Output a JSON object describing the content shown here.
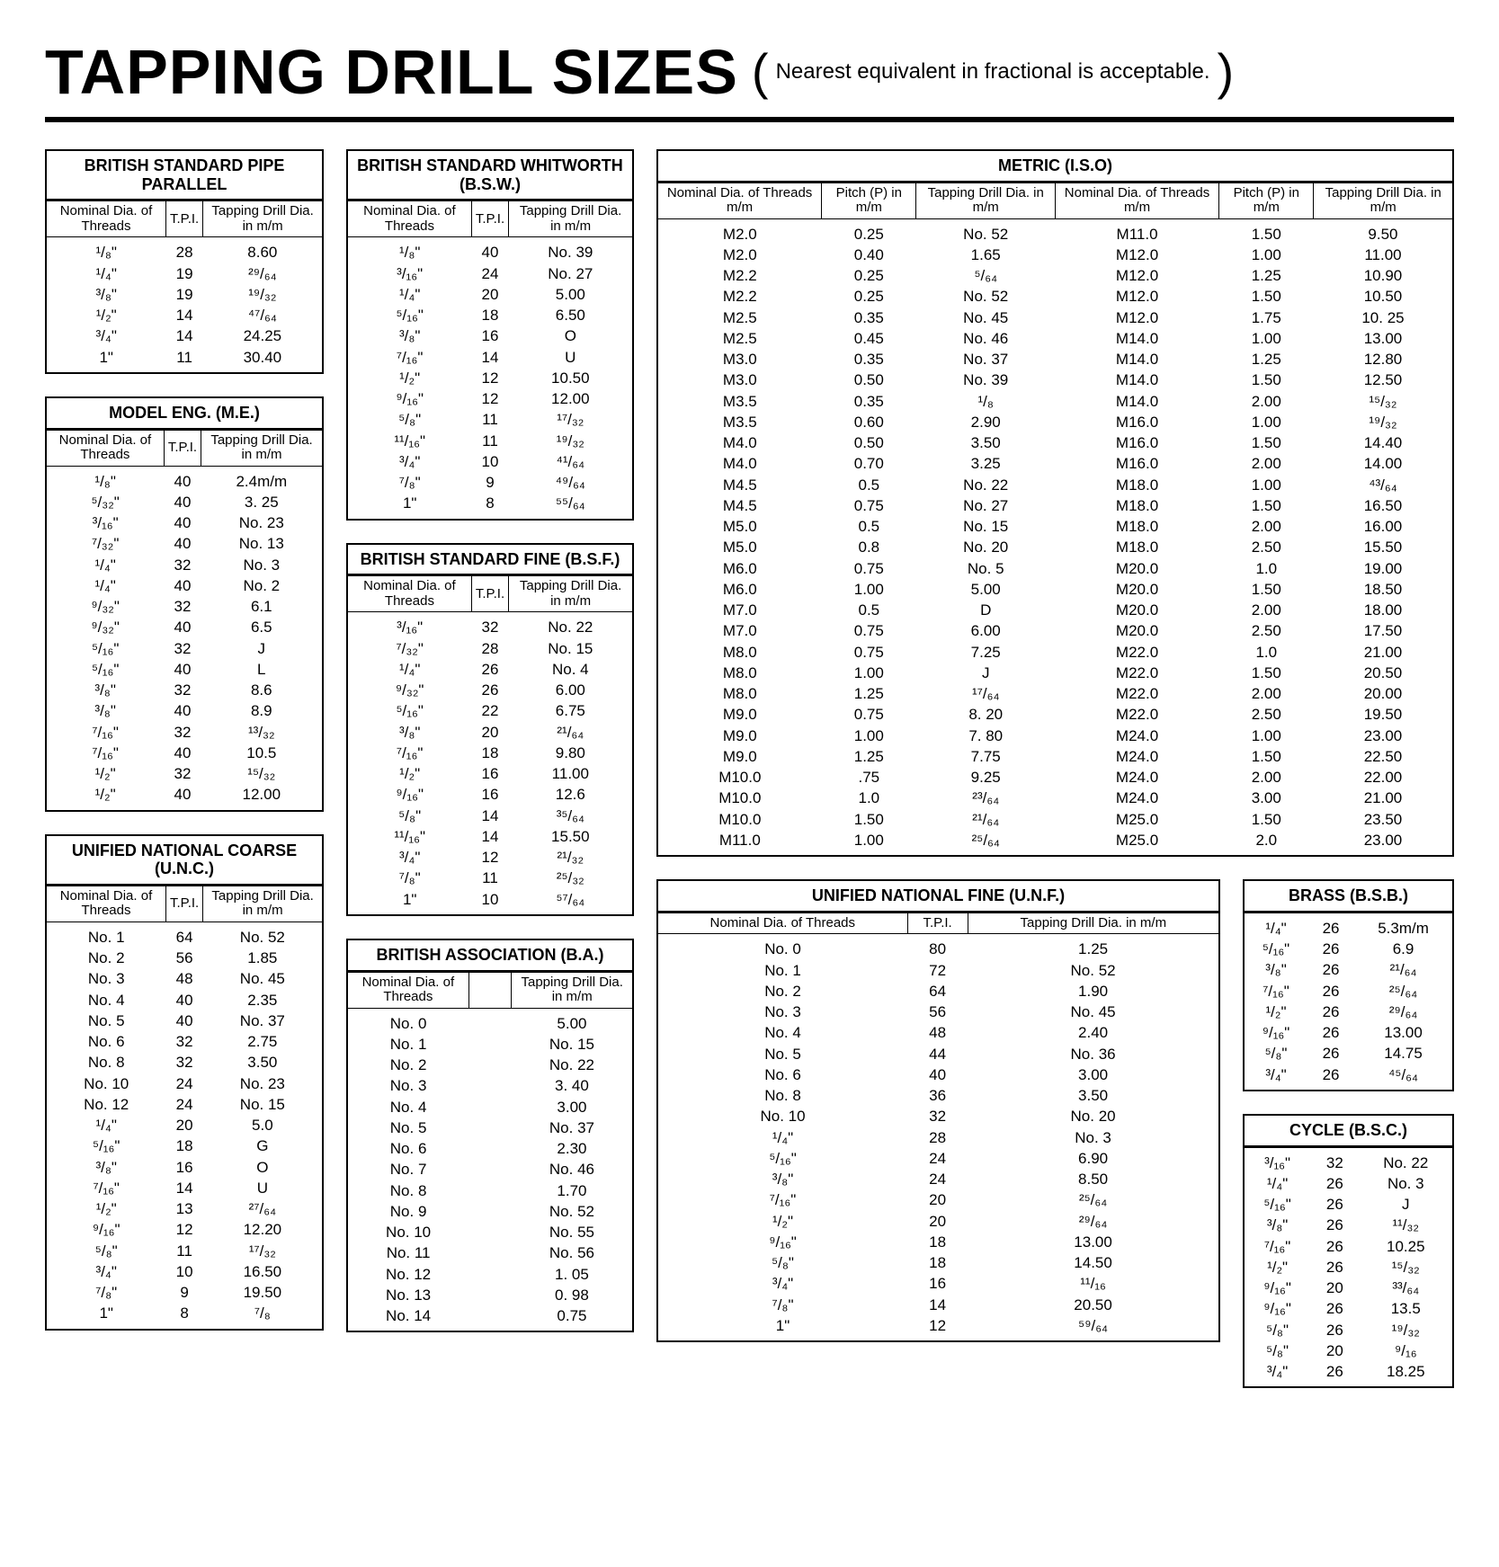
{
  "title": "TAPPING DRILL SIZES",
  "subtitle": "Nearest equivalent in fractional is acceptable.",
  "col_headers_std": [
    "Nominal Dia. of Threads",
    "T.P.I.",
    "Tapping Drill Dia. in m/m"
  ],
  "col_headers_ba": [
    "Nominal Dia. of Threads",
    "",
    "Tapping Drill Dia. in m/m"
  ],
  "col_headers_metric": [
    "Nominal Dia. of Threads m/m",
    "Pitch (P) in m/m",
    "Tapping Drill Dia. in m/m",
    "Nominal Dia. of Threads m/m",
    "Pitch (P) in m/m",
    "Tapping Drill Dia. in m/m"
  ],
  "tables": {
    "pipe": {
      "title": "BRITISH STANDARD PIPE PARALLEL",
      "rows": [
        [
          "¹/₈\"",
          "28",
          "8.60"
        ],
        [
          "¹/₄\"",
          "19",
          "²⁹/₆₄"
        ],
        [
          "³/₈\"",
          "19",
          "¹⁹/₃₂"
        ],
        [
          "¹/₂\"",
          "14",
          "⁴⁷/₆₄"
        ],
        [
          "³/₄\"",
          "14",
          "24.25"
        ],
        [
          "1\"",
          "11",
          "30.40"
        ]
      ]
    },
    "me": {
      "title": "MODEL ENG. (M.E.)",
      "rows": [
        [
          "¹/₈\"",
          "40",
          "2.4m/m"
        ],
        [
          "⁵/₃₂\"",
          "40",
          "3. 25"
        ],
        [
          "³/₁₆\"",
          "40",
          "No. 23"
        ],
        [
          "⁷/₃₂\"",
          "40",
          "No. 13"
        ],
        [
          "¹/₄\"",
          "32",
          "No. 3"
        ],
        [
          "¹/₄\"",
          "40",
          "No. 2"
        ],
        [
          "⁹/₃₂\"",
          "32",
          "6.1"
        ],
        [
          "⁹/₃₂\"",
          "40",
          "6.5"
        ],
        [
          "⁵/₁₆\"",
          "32",
          "J"
        ],
        [
          "⁵/₁₆\"",
          "40",
          "L"
        ],
        [
          "³/₈\"",
          "32",
          "8.6"
        ],
        [
          "³/₈\"",
          "40",
          "8.9"
        ],
        [
          "⁷/₁₆\"",
          "32",
          "¹³/₃₂"
        ],
        [
          "⁷/₁₆\"",
          "40",
          "10.5"
        ],
        [
          "¹/₂\"",
          "32",
          "¹⁵/₃₂"
        ],
        [
          "¹/₂\"",
          "40",
          "12.00"
        ]
      ]
    },
    "unc": {
      "title": "UNIFIED NATIONAL COARSE (U.N.C.)",
      "rows": [
        [
          "No. 1",
          "64",
          "No. 52"
        ],
        [
          "No. 2",
          "56",
          "1.85"
        ],
        [
          "No. 3",
          "48",
          "No. 45"
        ],
        [
          "No. 4",
          "40",
          "2.35"
        ],
        [
          "No. 5",
          "40",
          "No. 37"
        ],
        [
          "No. 6",
          "32",
          "2.75"
        ],
        [
          "No. 8",
          "32",
          "3.50"
        ],
        [
          "No. 10",
          "24",
          "No. 23"
        ],
        [
          "No. 12",
          "24",
          "No. 15"
        ],
        [
          "¹/₄\"",
          "20",
          "5.0"
        ],
        [
          "⁵/₁₆\"",
          "18",
          "G"
        ],
        [
          "³/₈\"",
          "16",
          "O"
        ],
        [
          "⁷/₁₆\"",
          "14",
          "U"
        ],
        [
          "¹/₂\"",
          "13",
          "²⁷/₆₄"
        ],
        [
          "⁹/₁₆\"",
          "12",
          "12.20"
        ],
        [
          "⁵/₈\"",
          "11",
          "¹⁷/₃₂"
        ],
        [
          "³/₄\"",
          "10",
          "16.50"
        ],
        [
          "⁷/₈\"",
          "9",
          "19.50"
        ],
        [
          "1\"",
          "8",
          "⁷/₈"
        ]
      ]
    },
    "bsw": {
      "title": "BRITISH STANDARD WHITWORTH (B.S.W.)",
      "rows": [
        [
          "¹/₈\"",
          "40",
          "No. 39"
        ],
        [
          "³/₁₆\"",
          "24",
          "No. 27"
        ],
        [
          "¹/₄\"",
          "20",
          "5.00"
        ],
        [
          "⁵/₁₆\"",
          "18",
          "6.50"
        ],
        [
          "³/₈\"",
          "16",
          "O"
        ],
        [
          "⁷/₁₆\"",
          "14",
          "U"
        ],
        [
          "¹/₂\"",
          "12",
          "10.50"
        ],
        [
          "⁹/₁₆\"",
          "12",
          "12.00"
        ],
        [
          "⁵/₈\"",
          "11",
          "¹⁷/₃₂"
        ],
        [
          "¹¹/₁₆\"",
          "11",
          "¹⁹/₃₂"
        ],
        [
          "³/₄\"",
          "10",
          "⁴¹/₆₄"
        ],
        [
          "⁷/₈\"",
          "9",
          "⁴⁹/₆₄"
        ],
        [
          "1\"",
          "8",
          "⁵⁵/₆₄"
        ]
      ]
    },
    "bsf": {
      "title": "BRITISH STANDARD FINE (B.S.F.)",
      "rows": [
        [
          "³/₁₆\"",
          "32",
          "No. 22"
        ],
        [
          "⁷/₃₂\"",
          "28",
          "No. 15"
        ],
        [
          "¹/₄\"",
          "26",
          "No. 4"
        ],
        [
          "⁹/₃₂\"",
          "26",
          "6.00"
        ],
        [
          "⁵/₁₆\"",
          "22",
          "6.75"
        ],
        [
          "³/₈\"",
          "20",
          "²¹/₆₄"
        ],
        [
          "⁷/₁₆\"",
          "18",
          "9.80"
        ],
        [
          "¹/₂\"",
          "16",
          "11.00"
        ],
        [
          "⁹/₁₆\"",
          "16",
          "12.6"
        ],
        [
          "⁵/₈\"",
          "14",
          "³⁵/₆₄"
        ],
        [
          "¹¹/₁₆\"",
          "14",
          "15.50"
        ],
        [
          "³/₄\"",
          "12",
          "²¹/₃₂"
        ],
        [
          "⁷/₈\"",
          "11",
          "²⁵/₃₂"
        ],
        [
          "1\"",
          "10",
          "⁵⁷/₆₄"
        ]
      ]
    },
    "ba": {
      "title": "BRITISH ASSOCIATION (B.A.)",
      "rows": [
        [
          "No. 0",
          "",
          "5.00"
        ],
        [
          "No. 1",
          "",
          "No. 15"
        ],
        [
          "No. 2",
          "",
          "No. 22"
        ],
        [
          "No. 3",
          "",
          "3. 40"
        ],
        [
          "No. 4",
          "",
          "3.00"
        ],
        [
          "No. 5",
          "",
          "No. 37"
        ],
        [
          "No. 6",
          "",
          "2.30"
        ],
        [
          "No. 7",
          "",
          "No. 46"
        ],
        [
          "No. 8",
          "",
          "1.70"
        ],
        [
          "No. 9",
          "",
          "No. 52"
        ],
        [
          "No. 10",
          "",
          "No. 55"
        ],
        [
          "No. 11",
          "",
          "No. 56"
        ],
        [
          "No. 12",
          "",
          "1. 05"
        ],
        [
          "No. 13",
          "",
          "0. 98"
        ],
        [
          "No. 14",
          "",
          "0.75"
        ]
      ]
    },
    "metric": {
      "title": "METRIC (I.S.O)",
      "rows": [
        [
          "M2.0",
          "0.25",
          "No. 52",
          "M11.0",
          "1.50",
          "9.50"
        ],
        [
          "M2.0",
          "0.40",
          "1.65",
          "M12.0",
          "1.00",
          "11.00"
        ],
        [
          "M2.2",
          "0.25",
          "⁵/₆₄",
          "M12.0",
          "1.25",
          "10.90"
        ],
        [
          "M2.2",
          "0.25",
          "No. 52",
          "M12.0",
          "1.50",
          "10.50"
        ],
        [
          "M2.5",
          "0.35",
          "No. 45",
          "M12.0",
          "1.75",
          "10. 25"
        ],
        [
          "M2.5",
          "0.45",
          "No. 46",
          "M14.0",
          "1.00",
          "13.00"
        ],
        [
          "M3.0",
          "0.35",
          "No. 37",
          "M14.0",
          "1.25",
          "12.80"
        ],
        [
          "M3.0",
          "0.50",
          "No. 39",
          "M14.0",
          "1.50",
          "12.50"
        ],
        [
          "M3.5",
          "0.35",
          "¹/₈",
          "M14.0",
          "2.00",
          "¹⁵/₃₂"
        ],
        [
          "M3.5",
          "0.60",
          "2.90",
          "M16.0",
          "1.00",
          "¹⁹/₃₂"
        ],
        [
          "M4.0",
          "0.50",
          "3.50",
          "M16.0",
          "1.50",
          "14.40"
        ],
        [
          "M4.0",
          "0.70",
          "3.25",
          "M16.0",
          "2.00",
          "14.00"
        ],
        [
          "M4.5",
          "0.5",
          "No. 22",
          "M18.0",
          "1.00",
          "⁴³/₆₄"
        ],
        [
          "M4.5",
          "0.75",
          "No. 27",
          "M18.0",
          "1.50",
          "16.50"
        ],
        [
          "M5.0",
          "0.5",
          "No. 15",
          "M18.0",
          "2.00",
          "16.00"
        ],
        [
          "M5.0",
          "0.8",
          "No. 20",
          "M18.0",
          "2.50",
          "15.50"
        ],
        [
          "M6.0",
          "0.75",
          "No. 5",
          "M20.0",
          "1.0",
          "19.00"
        ],
        [
          "M6.0",
          "1.00",
          "5.00",
          "M20.0",
          "1.50",
          "18.50"
        ],
        [
          "M7.0",
          "0.5",
          "D",
          "M20.0",
          "2.00",
          "18.00"
        ],
        [
          "M7.0",
          "0.75",
          "6.00",
          "M20.0",
          "2.50",
          "17.50"
        ],
        [
          "M8.0",
          "0.75",
          "7.25",
          "M22.0",
          "1.0",
          "21.00"
        ],
        [
          "M8.0",
          "1.00",
          "J",
          "M22.0",
          "1.50",
          "20.50"
        ],
        [
          "M8.0",
          "1.25",
          "¹⁷/₆₄",
          "M22.0",
          "2.00",
          "20.00"
        ],
        [
          "M9.0",
          "0.75",
          "8. 20",
          "M22.0",
          "2.50",
          "19.50"
        ],
        [
          "M9.0",
          "1.00",
          "7. 80",
          "M24.0",
          "1.00",
          "23.00"
        ],
        [
          "M9.0",
          "1.25",
          "7.75",
          "M24.0",
          "1.50",
          "22.50"
        ],
        [
          "M10.0",
          ".75",
          "9.25",
          "M24.0",
          "2.00",
          "22.00"
        ],
        [
          "M10.0",
          "1.0",
          "²³/₆₄",
          "M24.0",
          "3.00",
          "21.00"
        ],
        [
          "M10.0",
          "1.50",
          "²¹/₆₄",
          "M25.0",
          "1.50",
          "23.50"
        ],
        [
          "M11.0",
          "1.00",
          "²⁵/₆₄",
          "M25.0",
          "2.0",
          "23.00"
        ]
      ]
    },
    "unf": {
      "title": "UNIFIED NATIONAL FINE (U.N.F.)",
      "rows": [
        [
          "No. 0",
          "80",
          "1.25"
        ],
        [
          "No. 1",
          "72",
          "No. 52"
        ],
        [
          "No. 2",
          "64",
          "1.90"
        ],
        [
          "No. 3",
          "56",
          "No. 45"
        ],
        [
          "No. 4",
          "48",
          "2.40"
        ],
        [
          "No. 5",
          "44",
          "No. 36"
        ],
        [
          "No. 6",
          "40",
          "3.00"
        ],
        [
          "No. 8",
          "36",
          "3.50"
        ],
        [
          "No. 10",
          "32",
          "No. 20"
        ],
        [
          "¹/₄\"",
          "28",
          "No. 3"
        ],
        [
          "⁵/₁₆\"",
          "24",
          "6.90"
        ],
        [
          "³/₈\"",
          "24",
          "8.50"
        ],
        [
          "⁷/₁₆\"",
          "20",
          "²⁵/₆₄"
        ],
        [
          "¹/₂\"",
          "20",
          "²⁹/₆₄"
        ],
        [
          "⁹/₁₆\"",
          "18",
          "13.00"
        ],
        [
          "⁵/₈\"",
          "18",
          "14.50"
        ],
        [
          "³/₄\"",
          "16",
          "¹¹/₁₆"
        ],
        [
          "⁷/₈\"",
          "14",
          "20.50"
        ],
        [
          "1\"",
          "12",
          "⁵⁹/₆₄"
        ]
      ]
    },
    "brass": {
      "title": "BRASS (B.S.B.)",
      "rows": [
        [
          "¹/₄\"",
          "26",
          "5.3m/m"
        ],
        [
          "⁵/₁₆\"",
          "26",
          "6.9"
        ],
        [
          "³/₈\"",
          "26",
          "²¹/₆₄"
        ],
        [
          "⁷/₁₆\"",
          "26",
          "²⁵/₆₄"
        ],
        [
          "¹/₂\"",
          "26",
          "²⁹/₆₄"
        ],
        [
          "⁹/₁₆\"",
          "26",
          "13.00"
        ],
        [
          "⁵/₈\"",
          "26",
          "14.75"
        ],
        [
          "³/₄\"",
          "26",
          "⁴⁵/₆₄"
        ]
      ]
    },
    "cycle": {
      "title": "CYCLE (B.S.C.)",
      "rows": [
        [
          "³/₁₆\"",
          "32",
          "No. 22"
        ],
        [
          "¹/₄\"",
          "26",
          "No. 3"
        ],
        [
          "⁵/₁₆\"",
          "26",
          "J"
        ],
        [
          "³/₈\"",
          "26",
          "¹¹/₃₂"
        ],
        [
          "⁷/₁₆\"",
          "26",
          "10.25"
        ],
        [
          "¹/₂\"",
          "26",
          "¹⁵/₃₂"
        ],
        [
          "⁹/₁₆\"",
          "20",
          "³³/₆₄"
        ],
        [
          "⁹/₁₆\"",
          "26",
          "13.5"
        ],
        [
          "⁵/₈\"",
          "26",
          "¹⁹/₃₂"
        ],
        [
          "⁵/₈\"",
          "20",
          "⁹/₁₆"
        ],
        [
          "³/₄\"",
          "26",
          "18.25"
        ]
      ]
    }
  }
}
